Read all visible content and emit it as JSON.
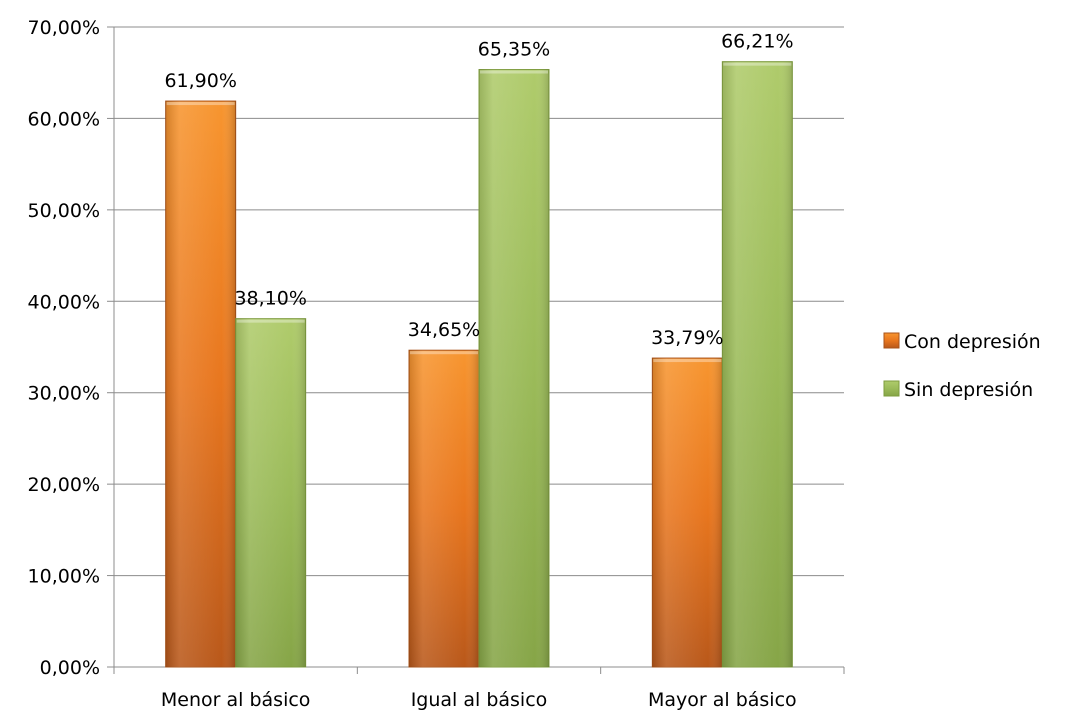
{
  "chart_data": {
    "type": "bar",
    "categories": [
      "Menor al básico",
      "Igual al básico",
      "Mayor al básico"
    ],
    "series": [
      {
        "name": "Con depresión",
        "values": [
          61.9,
          34.65,
          33.79
        ],
        "labels": [
          "61,90%",
          "34,65%",
          "33,79%"
        ],
        "color": "#E8761E"
      },
      {
        "name": "Sin depresión",
        "values": [
          38.1,
          65.35,
          66.21
        ],
        "labels": [
          "38,10%",
          "65,35%",
          "66,21%"
        ],
        "color": "#9BBB59"
      }
    ],
    "ylim": [
      0,
      70
    ],
    "yticks": [
      0,
      10,
      20,
      30,
      40,
      50,
      60,
      70
    ],
    "ytick_labels": [
      "0,00%",
      "10,00%",
      "20,00%",
      "30,00%",
      "40,00%",
      "50,00%",
      "60,00%",
      "70,00%"
    ],
    "grid": true,
    "legend_position": "right",
    "title": "",
    "xlabel": "",
    "ylabel": ""
  }
}
